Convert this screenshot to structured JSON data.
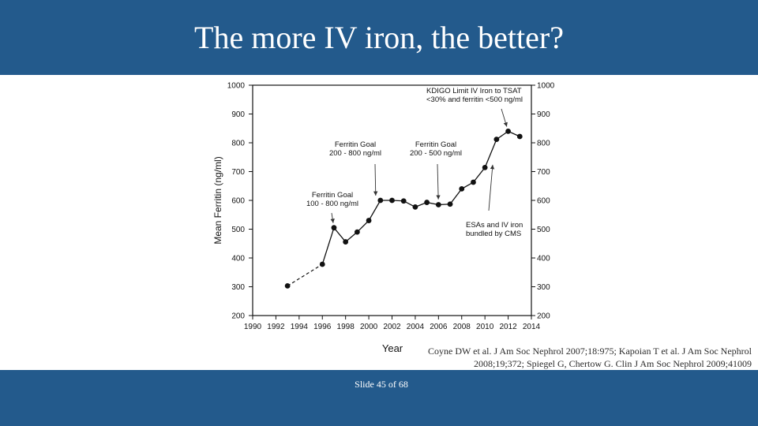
{
  "slide": {
    "title": "The more IV iron, the better?",
    "citation": "Coyne DW et al. J Am Soc Nephrol 2007;18:975; Kapoian T et al. J Am Soc Nephrol 2008;19;372; Spiegel G, Chertow G. Clin J Am Soc Nephrol 2009;41009",
    "slide_number": "Slide 45 of 68"
  },
  "colors": {
    "header_bg": "#235a8c",
    "footer_bg": "#235a8c",
    "title_text": "#ffffff",
    "series": "#111111"
  },
  "chart_data": {
    "type": "line",
    "title": "",
    "xlabel": "Year",
    "ylabel": "Mean Ferritin (ng/ml)",
    "xlim": [
      1990,
      2014
    ],
    "ylim": [
      200,
      1000
    ],
    "x_ticks": [
      1990,
      1992,
      1994,
      1996,
      1998,
      2000,
      2002,
      2004,
      2006,
      2008,
      2010,
      2012,
      2014
    ],
    "y_ticks": [
      200,
      300,
      400,
      500,
      600,
      700,
      800,
      900,
      1000
    ],
    "right_axis_ticks": [
      200,
      300,
      400,
      500,
      600,
      700,
      800,
      900,
      1000
    ],
    "series": [
      {
        "name": "Mean Ferritin",
        "x": [
          1993,
          1996,
          1997,
          1998,
          1999,
          2000,
          2001,
          2002,
          2003,
          2004,
          2005,
          2006,
          2007,
          2008,
          2009,
          2010,
          2011,
          2012,
          2013
        ],
        "y": [
          303,
          378,
          505,
          456,
          490,
          530,
          600,
          600,
          598,
          577,
          593,
          585,
          587,
          640,
          663,
          714,
          812,
          840,
          822
        ]
      }
    ],
    "annotations": [
      {
        "id": "kdigo",
        "lines": [
          "KDIGO Limit IV Iron to TSAT",
          "<30% and ferritin <500 ng/ml"
        ],
        "arrow_to": [
          2012,
          840
        ]
      },
      {
        "id": "goal-200-800",
        "lines": [
          "Ferritin Goal",
          "200 - 800 ng/ml"
        ],
        "arrow_to": [
          2000.6,
          600
        ]
      },
      {
        "id": "goal-200-500",
        "lines": [
          "Ferritin Goal",
          "200 - 500 ng/ml"
        ],
        "arrow_to": [
          2006,
          587
        ]
      },
      {
        "id": "goal-100-800",
        "lines": [
          "Ferritin Goal",
          "100 - 800 ng/ml"
        ],
        "arrow_to": [
          1997,
          505
        ]
      },
      {
        "id": "cms",
        "lines": [
          "ESAs and IV iron",
          "bundled by CMS"
        ],
        "arrow_to": [
          2010.7,
          740
        ]
      }
    ]
  }
}
